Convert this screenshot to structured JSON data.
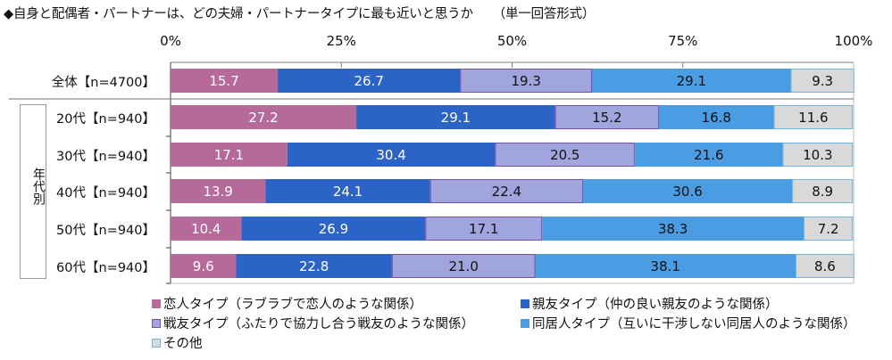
{
  "chart_data": {
    "type": "bar",
    "orientation": "horizontal",
    "stacked": true,
    "title": "◆自身と配偶者・パートナーは、どの夫婦・パートナータイプに最も近いと思うか",
    "subtitle": "（単一回答形式）",
    "xlim": [
      0,
      100
    ],
    "xticks": [
      "0%",
      "25%",
      "50%",
      "75%",
      "100%"
    ],
    "xtick_values": [
      0,
      25,
      50,
      75,
      100
    ],
    "categories": [
      "全体【n=4700】",
      "20代【n=940】",
      "30代【n=940】",
      "40代【n=940】",
      "50代【n=940】",
      "60代【n=940】"
    ],
    "group_label": "年代別",
    "series": [
      {
        "name": "恋人タイプ（ラブラブで恋人のような関係）",
        "color": "#B66A99",
        "border": "#B66A99",
        "label_color": "#ffffff",
        "values": [
          15.7,
          27.2,
          17.1,
          13.9,
          10.4,
          9.6
        ]
      },
      {
        "name": "親友タイプ（仲の良い親友のような関係）",
        "color": "#2B63C6",
        "border": "#2B63C6",
        "label_color": "#ffffff",
        "values": [
          26.7,
          29.1,
          30.4,
          24.1,
          26.9,
          22.8
        ]
      },
      {
        "name": "戦友タイプ（ふたりで協力し合う戦友のような関係）",
        "color": "#A0A6DD",
        "border": "#7A4FA8",
        "label_color": "#111111",
        "values": [
          19.3,
          15.2,
          20.5,
          22.4,
          17.1,
          21.0
        ]
      },
      {
        "name": "同居人タイプ（互いに干渉しない同居人のような関係）",
        "color": "#4A9CE3",
        "border": "#4A9CE3",
        "label_color": "#111111",
        "values": [
          29.1,
          16.8,
          21.6,
          30.6,
          38.3,
          38.1
        ]
      },
      {
        "name": "その他",
        "color": "#D9D9D9",
        "border": "#6FB6E0",
        "label_color": "#111111",
        "values": [
          9.3,
          11.6,
          10.3,
          8.9,
          7.2,
          8.6
        ]
      }
    ],
    "value_labels": [
      [
        "15.7",
        "26.7",
        "19.3",
        "29.1",
        "9.3"
      ],
      [
        "27.2",
        "29.1",
        "15.2",
        "16.8",
        "11.6"
      ],
      [
        "17.1",
        "30.4",
        "20.5",
        "21.6",
        "10.3"
      ],
      [
        "13.9",
        "24.1",
        "22.4",
        "30.6",
        "8.9"
      ],
      [
        "10.4",
        "26.9",
        "17.1",
        "38.3",
        "7.2"
      ],
      [
        "9.6",
        "22.8",
        "21.0",
        "38.1",
        "8.6"
      ]
    ],
    "legend_position": "bottom",
    "grid": false
  }
}
